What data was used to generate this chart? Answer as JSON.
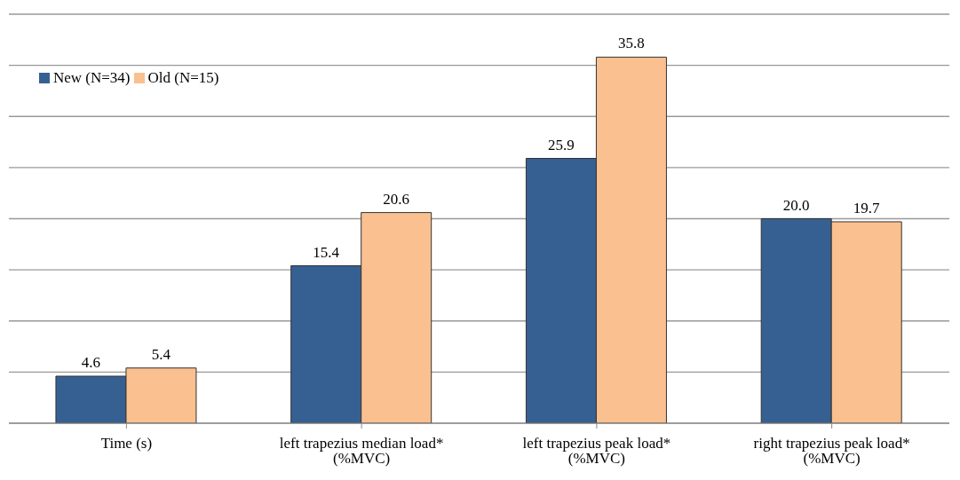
{
  "chart_data": {
    "type": "bar",
    "categories": [
      "Time (s)",
      "left trapezius median load* (%MVC)",
      "left trapezius peak load* (%MVC)",
      "right trapezius peak load* (%MVC)"
    ],
    "series": [
      {
        "name": "New (N=34)",
        "color": "#376092",
        "values": [
          4.6,
          15.4,
          25.9,
          20.0
        ],
        "value_labels": [
          "4.6",
          "15.4",
          "25.9",
          "20.0"
        ]
      },
      {
        "name": "Old (N=15)",
        "color": "#fac090",
        "values": [
          5.4,
          20.6,
          35.8,
          19.7
        ],
        "value_labels": [
          "5.4",
          "20.6",
          "35.8",
          "19.7"
        ]
      }
    ],
    "ylim": [
      0,
      40
    ],
    "tick_labels": "x",
    "grid": "y",
    "legend": "top left"
  }
}
